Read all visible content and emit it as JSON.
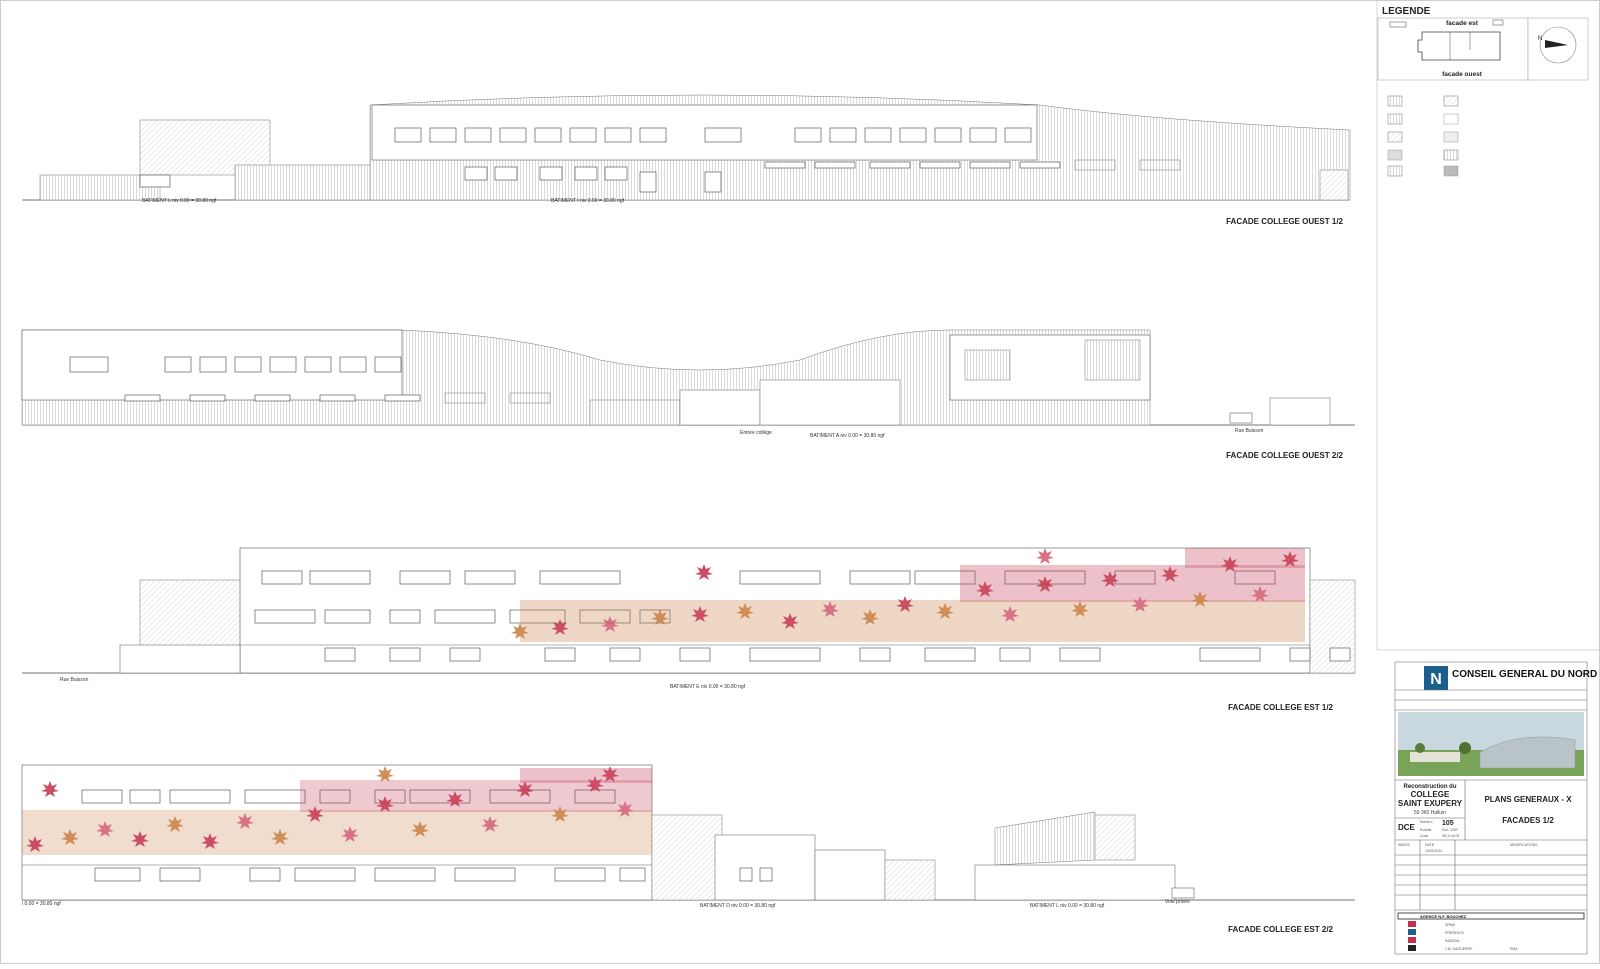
{
  "legend": {
    "title": "LEGENDE",
    "key_plan": {
      "top_label": "facade est",
      "bottom_label": "facade ouest",
      "north_label": "N"
    }
  },
  "facades": [
    {
      "title": "FACADE COLLEGE OUEST 1/2",
      "labels": [
        "BATIMENT L  niv 0.00 = 30.80 ngf",
        "BATIMENT I  niv 0.00 = 30.80 ngf"
      ]
    },
    {
      "title": "FACADE COLLEGE OUEST 2/2",
      "labels": [
        "Entrée collège",
        "BATIMENT A  niv 0.00 = 30.80 ngf",
        "Rue Buisson"
      ]
    },
    {
      "title": "FACADE COLLEGE EST 1/2",
      "labels": [
        "Rue Buisson",
        "BATIMENT E  niv 0.00 = 30.80 ngf"
      ]
    },
    {
      "title": "FACADE COLLEGE EST 2/2",
      "labels": [
        "i 0.00 = 30.80 ngf",
        "BATIMENT D  niv 0.00 = 30.80 ngf",
        "BATIMENT L  niv 0.00 = 30.80 ngf",
        "Voie privée"
      ]
    }
  ],
  "title_block": {
    "client": "CONSEIL GENERAL DU NORD",
    "project_line1": "Reconstruction du",
    "project_line2": "COLLEGE",
    "project_line3": "SAINT EXUPERY",
    "project_line4": "59 360 Halluin",
    "phase": "DCE",
    "sheet_title": "PLANS GENERAUX - X",
    "sheet_subtitle": "FACADES 1/2",
    "number_label": "Numéro",
    "number_value": "105",
    "scale_label": "Echelle",
    "scale_value": "Ech: 1/50°",
    "code_label": "Code",
    "code_value": "DE-X-af-01",
    "indice_label": "INDICE",
    "date_label": "DATE",
    "date_value": "10/02/2011",
    "modifications_label": "MODIFICATIONS",
    "architect": "AGENCE N.F. BOUCHEZ",
    "partners": [
      "SPAW",
      "PRESENTS",
      "INGEDIA",
      "J.M. DAGUERRE",
      "EMA"
    ]
  },
  "colors": {
    "leaf_red": "#c2304b",
    "leaf_orange": "#c77a3c",
    "leaf_pink": "#d25a73",
    "logo_blue": "#1b5f8c"
  }
}
